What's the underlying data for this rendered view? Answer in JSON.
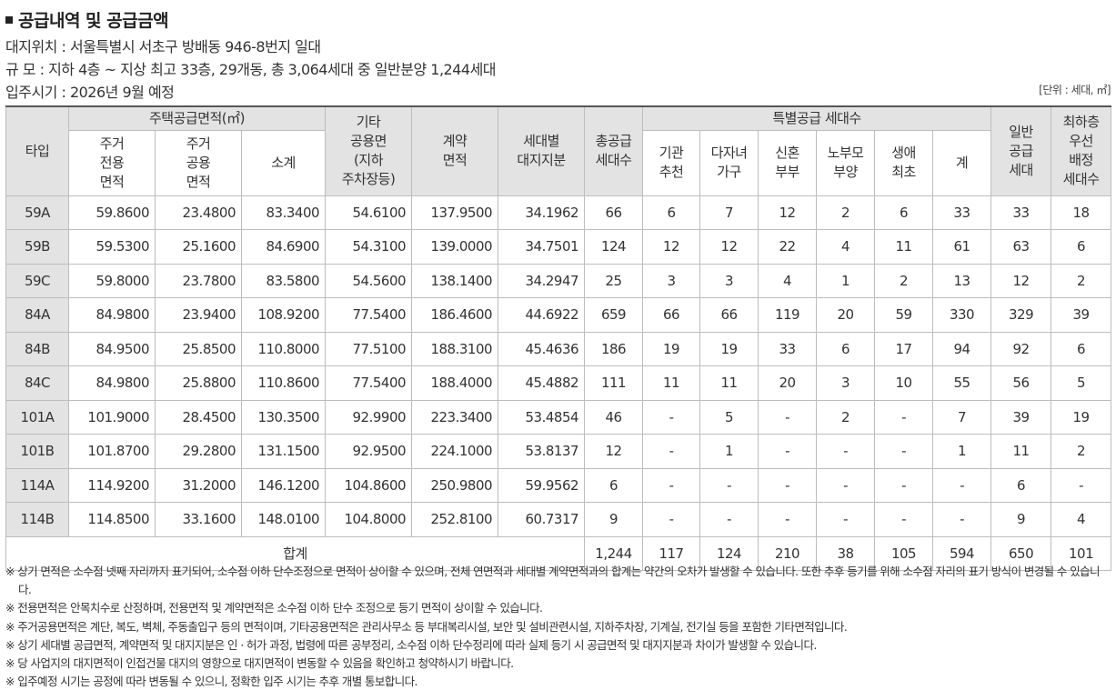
{
  "header": {
    "title": "공급내역 및 공급금액",
    "location": "대지위치 : 서울특별시 서초구 방배동 946-8번지 일대",
    "scale": "규  모 : 지하 4층 ~ 지상 최고 33층, 29개동, 총 3,064세대 중 일반분양 1,244세대",
    "move_in": "입주시기 : 2026년 9월 예정",
    "unit": "[단위 : 세대, ㎡]"
  },
  "table": {
    "headers": {
      "type": "타입",
      "housing_area": "주택공급면적(㎡)",
      "exclusive": "주거\n전용\n면적",
      "common": "주거\n공용\n면적",
      "subtotal": "소계",
      "other_common": "기타\n공용면\n(지하\n주차장등)",
      "contract_area": "계약\n면적",
      "land_share": "세대별\n대지지분",
      "total_supply": "총공급\n세대수",
      "special": "특별공급 세대수",
      "institution": "기관\n추천",
      "multi_child": "다자녀\n가구",
      "newlywed": "신혼\n부부",
      "elderly_parent": "노부모\n부양",
      "first_life": "생애\n최초",
      "special_total": "계",
      "general": "일반\n공급\n세대",
      "lowest_floor": "최하층\n우선\n배정\n세대수"
    },
    "rows": [
      {
        "type": "59A",
        "exclusive": "59.8600",
        "common": "23.4800",
        "subtotal": "83.3400",
        "other": "54.6100",
        "contract": "137.9500",
        "land": "34.1962",
        "total": "66",
        "inst": "6",
        "multi": "7",
        "newly": "12",
        "elder": "2",
        "first": "6",
        "sp_total": "33",
        "general": "33",
        "lowest": "18"
      },
      {
        "type": "59B",
        "exclusive": "59.5300",
        "common": "25.1600",
        "subtotal": "84.6900",
        "other": "54.3100",
        "contract": "139.0000",
        "land": "34.7501",
        "total": "124",
        "inst": "12",
        "multi": "12",
        "newly": "22",
        "elder": "4",
        "first": "11",
        "sp_total": "61",
        "general": "63",
        "lowest": "6"
      },
      {
        "type": "59C",
        "exclusive": "59.8000",
        "common": "23.7800",
        "subtotal": "83.5800",
        "other": "54.5600",
        "contract": "138.1400",
        "land": "34.2947",
        "total": "25",
        "inst": "3",
        "multi": "3",
        "newly": "4",
        "elder": "1",
        "first": "2",
        "sp_total": "13",
        "general": "12",
        "lowest": "2"
      },
      {
        "type": "84A",
        "exclusive": "84.9800",
        "common": "23.9400",
        "subtotal": "108.9200",
        "other": "77.5400",
        "contract": "186.4600",
        "land": "44.6922",
        "total": "659",
        "inst": "66",
        "multi": "66",
        "newly": "119",
        "elder": "20",
        "first": "59",
        "sp_total": "330",
        "general": "329",
        "lowest": "39"
      },
      {
        "type": "84B",
        "exclusive": "84.9500",
        "common": "25.8500",
        "subtotal": "110.8000",
        "other": "77.5100",
        "contract": "188.3100",
        "land": "45.4636",
        "total": "186",
        "inst": "19",
        "multi": "19",
        "newly": "33",
        "elder": "6",
        "first": "17",
        "sp_total": "94",
        "general": "92",
        "lowest": "6"
      },
      {
        "type": "84C",
        "exclusive": "84.9800",
        "common": "25.8800",
        "subtotal": "110.8600",
        "other": "77.5400",
        "contract": "188.4000",
        "land": "45.4882",
        "total": "111",
        "inst": "11",
        "multi": "11",
        "newly": "20",
        "elder": "3",
        "first": "10",
        "sp_total": "55",
        "general": "56",
        "lowest": "5"
      },
      {
        "type": "101A",
        "exclusive": "101.9000",
        "common": "28.4500",
        "subtotal": "130.3500",
        "other": "92.9900",
        "contract": "223.3400",
        "land": "53.4854",
        "total": "46",
        "inst": "-",
        "multi": "5",
        "newly": "-",
        "elder": "2",
        "first": "-",
        "sp_total": "7",
        "general": "39",
        "lowest": "19"
      },
      {
        "type": "101B",
        "exclusive": "101.8700",
        "common": "29.2800",
        "subtotal": "131.1500",
        "other": "92.9500",
        "contract": "224.1000",
        "land": "53.8137",
        "total": "12",
        "inst": "-",
        "multi": "1",
        "newly": "-",
        "elder": "-",
        "first": "-",
        "sp_total": "1",
        "general": "11",
        "lowest": "2"
      },
      {
        "type": "114A",
        "exclusive": "114.9200",
        "common": "31.2000",
        "subtotal": "146.1200",
        "other": "104.8600",
        "contract": "250.9800",
        "land": "59.9562",
        "total": "6",
        "inst": "-",
        "multi": "-",
        "newly": "-",
        "elder": "-",
        "first": "-",
        "sp_total": "-",
        "general": "6",
        "lowest": "-"
      },
      {
        "type": "114B",
        "exclusive": "114.8500",
        "common": "33.1600",
        "subtotal": "148.0100",
        "other": "104.8000",
        "contract": "252.8100",
        "land": "60.7317",
        "total": "9",
        "inst": "-",
        "multi": "-",
        "newly": "-",
        "elder": "-",
        "first": "-",
        "sp_total": "-",
        "general": "9",
        "lowest": "4"
      }
    ],
    "totals": {
      "label": "합계",
      "total": "1,244",
      "inst": "117",
      "multi": "124",
      "newly": "210",
      "elder": "38",
      "first": "105",
      "sp_total": "594",
      "general": "650",
      "lowest": "101"
    }
  },
  "notes": [
    "※ 상기 면적은 소수점 넷째 자리까지 표기되어, 소수점 이하 단수조정으로 면적이 상이할 수 있으며, 전체 연면적과 세대별 계약면적과의 합계는 약간의 오차가 발생할 수 있습니다. 또한 추후 등기를 위해 소수점 자리의 표기 방식이 변경될 수 있습니다.",
    "※ 전용면적은 안목치수로 산정하며, 전용면적 및 계약면적은 소수점 이하 단수 조정으로 등기 면적이 상이할 수 있습니다.",
    "※ 주거공용면적은 계단, 복도, 벽체, 주동출입구 등의 면적이며, 기타공용면적은 관리사무소 등 부대복리시설, 보안 및 설비관련시설, 지하주차장, 기계실, 전기실 등을 포함한 기타면적입니다.",
    "※ 상기 세대별 공급면적, 계약면적 및 대지지분은 인 · 허가 과정, 법령에 따른 공부정리, 소수점 이하 단수정리에 따라 실제 등기 시 공급면적 및 대지지분과 차이가 발생할 수 있습니다.",
    "※ 당 사업지의 대지면적이 인접건물 대지의 영향으로 대지면적이 변동할 수 있음을 확인하고 청약하시기 바랍니다.",
    "※ 입주예정 시기는 공정에 따라 변동될 수 있으니, 정확한 입주 시기는 추후 개별 통보합니다."
  ]
}
